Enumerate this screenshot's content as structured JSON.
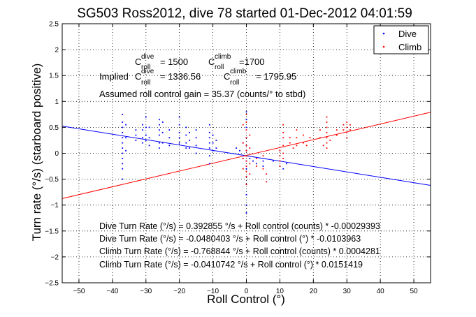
{
  "chart_data": {
    "type": "scatter",
    "title": "SG503 Ross2012, dive 78 started 01-Dec-2012 04:01:59",
    "xlabel": "Roll Control (°)",
    "ylabel": "Turn rate (°/s) (starboard positive)",
    "xlim": [
      -55,
      55
    ],
    "ylim": [
      -2.5,
      2.5
    ],
    "x_ticks": [
      -50,
      -40,
      -30,
      -20,
      -10,
      0,
      10,
      20,
      30,
      40,
      50
    ],
    "y_ticks": [
      -2.5,
      -2,
      -1.5,
      -1,
      -0.5,
      0,
      0.5,
      1,
      1.5,
      2,
      2.5
    ],
    "x_tick_labels": [
      "−50",
      "−40",
      "−30",
      "−20",
      "−10",
      "0",
      "10",
      "20",
      "30",
      "40",
      "50"
    ],
    "y_tick_labels": [
      "−2.5",
      "−2",
      "−1.5",
      "−1",
      "−0.5",
      "0",
      "0.5",
      "1",
      "1.5",
      "2",
      "2.5"
    ],
    "grid": true,
    "legend_position": "top-right",
    "legend": [
      {
        "label": "Dive",
        "color": "#0000ff"
      },
      {
        "label": "Climb",
        "color": "#ff0000"
      }
    ],
    "annotations": {
      "c_label_prefix": "C",
      "dive_super": "dive",
      "climb_super": "climb",
      "roll_sub": "roll",
      "c_dive_value": "= 1500",
      "c_climb_value": "=1700",
      "implied_prefix": "Implied",
      "implied_dive_value": "= 1336.56",
      "implied_climb_value": "= 1795.95",
      "gain_text": "Assumed roll control gain = 35.37 (counts/° to stbd)",
      "eq1": "Dive Turn Rate (°/s) = 0.392855 °/s + Roll control (counts) * -0.00029393",
      "eq2": "Dive Turn Rate (°/s) = -0.0480403 °/s + Roll control (°) * -0.0103963",
      "eq3": "Climb Turn Rate (°/s) = -0.768844 °/s + Roll control (counts) * 0.0004281",
      "eq4": "Climb Turn Rate (°/s) = -0.0410742 °/s + Roll control (°) * 0.0151419"
    },
    "fit_lines": [
      {
        "series": "Dive",
        "color": "#0000ff",
        "intercept": -0.0480403,
        "slope": -0.0103963
      },
      {
        "series": "Climb",
        "color": "#ff0000",
        "intercept": -0.0410742,
        "slope": 0.0151419
      }
    ],
    "series": [
      {
        "name": "Dive",
        "color": "#0000ff",
        "points": [
          [
            -37,
            0.75
          ],
          [
            -37,
            0.6
          ],
          [
            -37,
            0.5
          ],
          [
            -37,
            0.4
          ],
          [
            -37,
            0.3
          ],
          [
            -37,
            0.2
          ],
          [
            -37,
            0.1
          ],
          [
            -37,
            0.0
          ],
          [
            -37,
            -0.1
          ],
          [
            -37,
            -0.2
          ],
          [
            -37,
            -0.3
          ],
          [
            -37,
            -0.5
          ],
          [
            -36,
            0.55
          ],
          [
            -36,
            0.3
          ],
          [
            -36,
            0.05
          ],
          [
            -33,
            0.45
          ],
          [
            -33,
            0.35
          ],
          [
            -33,
            0.25
          ],
          [
            -31,
            0.55
          ],
          [
            -31,
            0.45
          ],
          [
            -31,
            0.3
          ],
          [
            -31,
            0.2
          ],
          [
            -30,
            0.7
          ],
          [
            -30,
            0.5
          ],
          [
            -30,
            0.35
          ],
          [
            -30,
            0.25
          ],
          [
            -29,
            0.5
          ],
          [
            -29,
            0.3
          ],
          [
            -29,
            0.15
          ],
          [
            -26,
            0.65
          ],
          [
            -26,
            0.55
          ],
          [
            -26,
            0.45
          ],
          [
            -26,
            0.35
          ],
          [
            -26,
            0.2
          ],
          [
            -26,
            0.1
          ],
          [
            -25,
            0.6
          ],
          [
            -25,
            0.4
          ],
          [
            -25,
            0.2
          ],
          [
            -23,
            0.45
          ],
          [
            -23,
            0.3
          ],
          [
            -23,
            0.15
          ],
          [
            -20,
            0.7
          ],
          [
            -20,
            0.55
          ],
          [
            -20,
            0.4
          ],
          [
            -20,
            0.3
          ],
          [
            -20,
            0.2
          ],
          [
            -18,
            0.5
          ],
          [
            -18,
            0.35
          ],
          [
            -18,
            0.2
          ],
          [
            -18,
            0.1
          ],
          [
            -17,
            0.4
          ],
          [
            -17,
            0.25
          ],
          [
            -17,
            0.1
          ],
          [
            -15,
            0.45
          ],
          [
            -15,
            0.3
          ],
          [
            -15,
            0.15
          ],
          [
            -15,
            0.0
          ],
          [
            -11,
            0.55
          ],
          [
            -11,
            0.4
          ],
          [
            -11,
            0.3
          ],
          [
            -11,
            0.2
          ],
          [
            -11,
            0.1
          ],
          [
            -11,
            -0.05
          ],
          [
            -11,
            -0.2
          ],
          [
            -10,
            0.35
          ],
          [
            -10,
            0.2
          ],
          [
            -10,
            0.05
          ],
          [
            -9,
            0.25
          ],
          [
            -9,
            0.1
          ],
          [
            -3,
            0.1
          ],
          [
            -2,
            0.05
          ],
          [
            -1,
            0.2
          ],
          [
            -1,
            -0.1
          ],
          [
            0,
            0.8
          ],
          [
            0,
            0.65
          ],
          [
            0,
            0.5
          ],
          [
            0,
            0.3
          ],
          [
            0,
            0.15
          ],
          [
            0,
            0.05
          ],
          [
            0,
            -0.05
          ],
          [
            0,
            -0.15
          ],
          [
            0,
            -0.3
          ],
          [
            0,
            -0.45
          ],
          [
            0,
            -0.6
          ],
          [
            0,
            -0.8
          ],
          [
            0,
            -1.0
          ],
          [
            0,
            -1.15
          ],
          [
            1,
            -0.1
          ],
          [
            2,
            -0.15
          ],
          [
            3,
            -0.2
          ],
          [
            5,
            -0.15
          ],
          [
            5,
            -0.25
          ],
          [
            8,
            -0.15
          ],
          [
            10,
            -0.15
          ],
          [
            10,
            -0.25
          ],
          [
            11,
            -0.3
          ],
          [
            12,
            -0.2
          ]
        ]
      },
      {
        "name": "Climb",
        "color": "#ff0000",
        "points": [
          [
            -1,
            0.55
          ],
          [
            -1,
            0.2
          ],
          [
            -1,
            -0.1
          ],
          [
            -1,
            -0.3
          ],
          [
            0,
            0.75
          ],
          [
            0,
            0.6
          ],
          [
            0,
            0.45
          ],
          [
            0,
            0.3
          ],
          [
            0,
            0.15
          ],
          [
            0,
            0.05
          ],
          [
            0,
            -0.05
          ],
          [
            0,
            -0.15
          ],
          [
            0,
            -0.25
          ],
          [
            0,
            -0.35
          ],
          [
            0,
            -0.45
          ],
          [
            0,
            -0.6
          ],
          [
            1,
            0.35
          ],
          [
            1,
            0.1
          ],
          [
            1,
            -0.2
          ],
          [
            1,
            -0.4
          ],
          [
            3,
            -0.1
          ],
          [
            3,
            -0.25
          ],
          [
            5,
            -0.05
          ],
          [
            5,
            -0.3
          ],
          [
            6,
            -0.4
          ],
          [
            6,
            -0.55
          ],
          [
            10,
            0.05
          ],
          [
            10,
            -0.05
          ],
          [
            10,
            -0.15
          ],
          [
            10,
            -0.25
          ],
          [
            11,
            0.55
          ],
          [
            11,
            0.4
          ],
          [
            11,
            0.3
          ],
          [
            11,
            0.15
          ],
          [
            11,
            0.0
          ],
          [
            11,
            -0.1
          ],
          [
            13,
            0.3
          ],
          [
            13,
            0.2
          ],
          [
            14,
            0.1
          ],
          [
            15,
            0.45
          ],
          [
            15,
            0.3
          ],
          [
            15,
            0.15
          ],
          [
            17,
            0.35
          ],
          [
            17,
            0.2
          ],
          [
            18,
            0.15
          ],
          [
            19,
            0.3
          ],
          [
            22,
            0.45
          ],
          [
            22,
            0.3
          ],
          [
            23,
            0.15
          ],
          [
            24,
            0.7
          ],
          [
            24,
            0.6
          ],
          [
            24,
            0.5
          ],
          [
            24,
            0.4
          ],
          [
            24,
            0.3
          ],
          [
            24,
            0.2
          ],
          [
            24,
            0.1
          ],
          [
            25,
            0.25
          ],
          [
            27,
            0.45
          ],
          [
            27,
            0.35
          ],
          [
            29,
            0.55
          ],
          [
            29,
            0.45
          ],
          [
            30,
            0.6
          ],
          [
            30,
            0.5
          ],
          [
            30,
            0.4
          ],
          [
            30,
            0.3
          ],
          [
            31,
            0.55
          ],
          [
            31,
            0.45
          ]
        ]
      }
    ]
  }
}
